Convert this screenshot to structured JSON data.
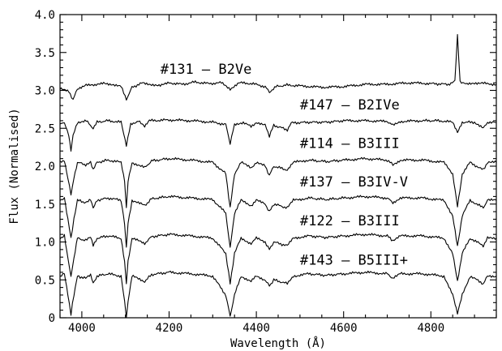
{
  "chart_data": {
    "type": "line",
    "title": "",
    "xlabel": "Wavelength (Å)",
    "ylabel": "Flux (Normalised)",
    "xlim": [
      3950,
      4950
    ],
    "ylim": [
      0,
      4.0
    ],
    "x_ticks": [
      4000,
      4200,
      4400,
      4600,
      4800
    ],
    "x_tick_labels": [
      "4000",
      "4200",
      "4400",
      "4600",
      "4800"
    ],
    "y_ticks": [
      0,
      0.5,
      1.0,
      1.5,
      2.0,
      2.5,
      3.0,
      3.5,
      4.0
    ],
    "y_tick_labels": [
      "0",
      "0.5",
      "1.0",
      "1.5",
      "2.0",
      "2.5",
      "3.0",
      "3.5",
      "4.0"
    ],
    "grid": false,
    "legend": "none",
    "series": [
      {
        "name": "#131 – B2Ve",
        "label_position": [
          4180,
          3.22
        ],
        "points": [
          [
            3950,
            3.03
          ],
          [
            3970,
            2.98
          ],
          [
            3980,
            2.88
          ],
          [
            3990,
            3.02
          ],
          [
            4010,
            3.08
          ],
          [
            4030,
            3.06
          ],
          [
            4050,
            3.1
          ],
          [
            4070,
            3.08
          ],
          [
            4090,
            3.05
          ],
          [
            4102,
            2.88
          ],
          [
            4115,
            3.04
          ],
          [
            4140,
            3.1
          ],
          [
            4160,
            3.08
          ],
          [
            4180,
            3.06
          ],
          [
            4200,
            3.1
          ],
          [
            4230,
            3.08
          ],
          [
            4260,
            3.11
          ],
          [
            4290,
            3.09
          ],
          [
            4320,
            3.1
          ],
          [
            4340,
            3.02
          ],
          [
            4360,
            3.1
          ],
          [
            4390,
            3.09
          ],
          [
            4420,
            3.05
          ],
          [
            4430,
            2.98
          ],
          [
            4445,
            3.05
          ],
          [
            4470,
            3.07
          ],
          [
            4500,
            3.06
          ],
          [
            4550,
            3.04
          ],
          [
            4600,
            3.05
          ],
          [
            4650,
            3.08
          ],
          [
            4700,
            3.08
          ],
          [
            4750,
            3.1
          ],
          [
            4800,
            3.09
          ],
          [
            4840,
            3.08
          ],
          [
            4855,
            3.12
          ],
          [
            4861,
            3.72
          ],
          [
            4867,
            3.12
          ],
          [
            4880,
            3.08
          ],
          [
            4900,
            3.1
          ],
          [
            4950,
            3.08
          ]
        ]
      },
      {
        "name": "#147 – B2IVe",
        "label_position": [
          4500,
          2.75
        ],
        "points": [
          [
            3950,
            2.55
          ],
          [
            3960,
            2.58
          ],
          [
            3970,
            2.4
          ],
          [
            3975,
            2.2
          ],
          [
            3980,
            2.4
          ],
          [
            3990,
            2.58
          ],
          [
            4010,
            2.6
          ],
          [
            4026,
            2.5
          ],
          [
            4035,
            2.58
          ],
          [
            4060,
            2.6
          ],
          [
            4090,
            2.58
          ],
          [
            4102,
            2.28
          ],
          [
            4112,
            2.55
          ],
          [
            4130,
            2.6
          ],
          [
            4144,
            2.52
          ],
          [
            4155,
            2.6
          ],
          [
            4200,
            2.61
          ],
          [
            4250,
            2.6
          ],
          [
            4300,
            2.58
          ],
          [
            4330,
            2.55
          ],
          [
            4340,
            2.3
          ],
          [
            4350,
            2.55
          ],
          [
            4370,
            2.58
          ],
          [
            4388,
            2.52
          ],
          [
            4400,
            2.58
          ],
          [
            4420,
            2.54
          ],
          [
            4430,
            2.4
          ],
          [
            4440,
            2.54
          ],
          [
            4471,
            2.48
          ],
          [
            4480,
            2.57
          ],
          [
            4520,
            2.58
          ],
          [
            4560,
            2.58
          ],
          [
            4600,
            2.6
          ],
          [
            4650,
            2.6
          ],
          [
            4700,
            2.59
          ],
          [
            4713,
            2.54
          ],
          [
            4730,
            2.59
          ],
          [
            4780,
            2.6
          ],
          [
            4820,
            2.6
          ],
          [
            4850,
            2.58
          ],
          [
            4861,
            2.45
          ],
          [
            4872,
            2.58
          ],
          [
            4900,
            2.58
          ],
          [
            4920,
            2.5
          ],
          [
            4930,
            2.58
          ],
          [
            4950,
            2.58
          ]
        ]
      },
      {
        "name": "#114 – B3III",
        "label_position": [
          4500,
          2.24
        ],
        "points": [
          [
            3950,
            2.05
          ],
          [
            3960,
            2.08
          ],
          [
            3968,
            1.85
          ],
          [
            3975,
            1.62
          ],
          [
            3982,
            1.85
          ],
          [
            3990,
            2.05
          ],
          [
            4009,
            2.02
          ],
          [
            4020,
            2.06
          ],
          [
            4026,
            1.95
          ],
          [
            4035,
            2.05
          ],
          [
            4060,
            2.08
          ],
          [
            4090,
            2.05
          ],
          [
            4098,
            1.8
          ],
          [
            4102,
            1.45
          ],
          [
            4106,
            1.8
          ],
          [
            4115,
            2.05
          ],
          [
            4144,
            1.98
          ],
          [
            4160,
            2.07
          ],
          [
            4200,
            2.1
          ],
          [
            4250,
            2.08
          ],
          [
            4300,
            2.05
          ],
          [
            4330,
            1.9
          ],
          [
            4340,
            1.45
          ],
          [
            4350,
            1.9
          ],
          [
            4365,
            2.05
          ],
          [
            4388,
            1.98
          ],
          [
            4400,
            2.05
          ],
          [
            4420,
            2.0
          ],
          [
            4430,
            1.88
          ],
          [
            4440,
            2.0
          ],
          [
            4471,
            1.95
          ],
          [
            4485,
            2.05
          ],
          [
            4520,
            2.08
          ],
          [
            4560,
            2.06
          ],
          [
            4600,
            2.08
          ],
          [
            4650,
            2.1
          ],
          [
            4700,
            2.08
          ],
          [
            4713,
            2.02
          ],
          [
            4730,
            2.08
          ],
          [
            4780,
            2.08
          ],
          [
            4830,
            2.05
          ],
          [
            4850,
            1.9
          ],
          [
            4861,
            1.48
          ],
          [
            4872,
            1.9
          ],
          [
            4890,
            2.05
          ],
          [
            4920,
            1.95
          ],
          [
            4930,
            2.05
          ],
          [
            4950,
            2.05
          ]
        ]
      },
      {
        "name": "#137 – B3IV-V",
        "label_position": [
          4500,
          1.73
        ],
        "points": [
          [
            3950,
            1.55
          ],
          [
            3960,
            1.58
          ],
          [
            3968,
            1.3
          ],
          [
            3975,
            1.05
          ],
          [
            3982,
            1.3
          ],
          [
            3990,
            1.55
          ],
          [
            4009,
            1.52
          ],
          [
            4020,
            1.56
          ],
          [
            4026,
            1.44
          ],
          [
            4035,
            1.55
          ],
          [
            4060,
            1.58
          ],
          [
            4090,
            1.55
          ],
          [
            4098,
            1.25
          ],
          [
            4102,
            0.92
          ],
          [
            4106,
            1.25
          ],
          [
            4115,
            1.55
          ],
          [
            4144,
            1.48
          ],
          [
            4160,
            1.57
          ],
          [
            4200,
            1.6
          ],
          [
            4250,
            1.58
          ],
          [
            4300,
            1.56
          ],
          [
            4330,
            1.38
          ],
          [
            4340,
            0.92
          ],
          [
            4350,
            1.38
          ],
          [
            4365,
            1.55
          ],
          [
            4388,
            1.48
          ],
          [
            4400,
            1.55
          ],
          [
            4420,
            1.5
          ],
          [
            4430,
            1.4
          ],
          [
            4440,
            1.5
          ],
          [
            4471,
            1.45
          ],
          [
            4485,
            1.55
          ],
          [
            4520,
            1.58
          ],
          [
            4560,
            1.56
          ],
          [
            4600,
            1.58
          ],
          [
            4650,
            1.6
          ],
          [
            4700,
            1.58
          ],
          [
            4713,
            1.52
          ],
          [
            4730,
            1.58
          ],
          [
            4780,
            1.58
          ],
          [
            4830,
            1.55
          ],
          [
            4850,
            1.35
          ],
          [
            4861,
            0.95
          ],
          [
            4872,
            1.35
          ],
          [
            4890,
            1.55
          ],
          [
            4920,
            1.45
          ],
          [
            4930,
            1.55
          ],
          [
            4950,
            1.55
          ]
        ]
      },
      {
        "name": "#122 – B3III",
        "label_position": [
          4500,
          1.22
        ],
        "points": [
          [
            3950,
            1.05
          ],
          [
            3960,
            1.08
          ],
          [
            3968,
            0.78
          ],
          [
            3975,
            0.55
          ],
          [
            3982,
            0.78
          ],
          [
            3990,
            1.05
          ],
          [
            4009,
            1.02
          ],
          [
            4020,
            1.06
          ],
          [
            4026,
            0.95
          ],
          [
            4035,
            1.05
          ],
          [
            4060,
            1.08
          ],
          [
            4090,
            1.05
          ],
          [
            4098,
            0.75
          ],
          [
            4102,
            0.45
          ],
          [
            4106,
            0.75
          ],
          [
            4115,
            1.05
          ],
          [
            4144,
            0.98
          ],
          [
            4160,
            1.07
          ],
          [
            4200,
            1.1
          ],
          [
            4250,
            1.08
          ],
          [
            4300,
            1.05
          ],
          [
            4330,
            0.85
          ],
          [
            4340,
            0.45
          ],
          [
            4350,
            0.85
          ],
          [
            4365,
            1.05
          ],
          [
            4388,
            0.98
          ],
          [
            4400,
            1.05
          ],
          [
            4420,
            1.0
          ],
          [
            4430,
            0.9
          ],
          [
            4440,
            1.0
          ],
          [
            4471,
            0.95
          ],
          [
            4485,
            1.05
          ],
          [
            4520,
            1.08
          ],
          [
            4560,
            1.06
          ],
          [
            4600,
            1.08
          ],
          [
            4650,
            1.1
          ],
          [
            4700,
            1.08
          ],
          [
            4713,
            1.02
          ],
          [
            4730,
            1.08
          ],
          [
            4780,
            1.08
          ],
          [
            4830,
            1.05
          ],
          [
            4850,
            0.85
          ],
          [
            4861,
            0.48
          ],
          [
            4872,
            0.85
          ],
          [
            4890,
            1.05
          ],
          [
            4920,
            0.95
          ],
          [
            4930,
            1.05
          ],
          [
            4950,
            1.05
          ]
        ]
      },
      {
        "name": "#143 – B5III+",
        "label_position": [
          4500,
          0.7
        ],
        "points": [
          [
            3950,
            0.55
          ],
          [
            3960,
            0.58
          ],
          [
            3968,
            0.3
          ],
          [
            3975,
            0.05
          ],
          [
            3982,
            0.3
          ],
          [
            3990,
            0.55
          ],
          [
            4009,
            0.52
          ],
          [
            4020,
            0.56
          ],
          [
            4026,
            0.46
          ],
          [
            4035,
            0.55
          ],
          [
            4060,
            0.58
          ],
          [
            4090,
            0.55
          ],
          [
            4098,
            0.22
          ],
          [
            4102,
            0.0
          ],
          [
            4106,
            0.22
          ],
          [
            4115,
            0.55
          ],
          [
            4144,
            0.48
          ],
          [
            4160,
            0.57
          ],
          [
            4200,
            0.6
          ],
          [
            4250,
            0.58
          ],
          [
            4300,
            0.55
          ],
          [
            4330,
            0.3
          ],
          [
            4340,
            0.02
          ],
          [
            4350,
            0.3
          ],
          [
            4365,
            0.55
          ],
          [
            4388,
            0.48
          ],
          [
            4400,
            0.55
          ],
          [
            4420,
            0.5
          ],
          [
            4430,
            0.42
          ],
          [
            4440,
            0.5
          ],
          [
            4471,
            0.45
          ],
          [
            4485,
            0.55
          ],
          [
            4520,
            0.58
          ],
          [
            4560,
            0.56
          ],
          [
            4600,
            0.58
          ],
          [
            4650,
            0.6
          ],
          [
            4700,
            0.58
          ],
          [
            4713,
            0.52
          ],
          [
            4730,
            0.58
          ],
          [
            4780,
            0.58
          ],
          [
            4830,
            0.55
          ],
          [
            4850,
            0.3
          ],
          [
            4861,
            0.05
          ],
          [
            4872,
            0.3
          ],
          [
            4890,
            0.55
          ],
          [
            4920,
            0.45
          ],
          [
            4930,
            0.55
          ],
          [
            4950,
            0.55
          ]
        ]
      }
    ]
  }
}
